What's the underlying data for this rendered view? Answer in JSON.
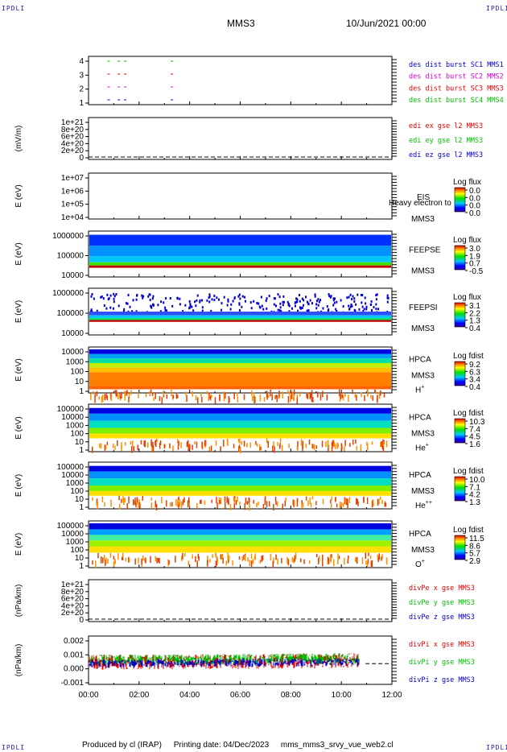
{
  "header": {
    "title": "MMS3",
    "date": "10/Jun/2021 00:00"
  },
  "corner_label": "IPDLI",
  "footer": {
    "producer": "Produced by cl (IRAP)",
    "printing": "Printing date: 04/Dec/2023",
    "file": "mms_mms3_srvy_vue_web2.cl"
  },
  "colors": {
    "red": "#e00000",
    "green": "#00c000",
    "blue": "#0000cc",
    "magenta": "#d000d0"
  },
  "chart_data": [
    {
      "type": "scatter",
      "id": "burst",
      "ylim": [
        0.5,
        4.5
      ],
      "yticks": [
        "1",
        "2",
        "3",
        "4"
      ],
      "legend": [
        {
          "text": "des dist burst SC1 MMS1",
          "color": "#0000cc"
        },
        {
          "text": "des dist burst SC2 MMS2",
          "color": "#d000d0"
        },
        {
          "text": "des dist burst SC3 MMS3",
          "color": "#e00000"
        },
        {
          "text": "des dist burst SC4 MMS4",
          "color": "#00c000"
        }
      ],
      "x_hours": [
        0.75,
        1.15,
        1.4,
        3.25
      ],
      "rows": [
        1,
        2,
        3,
        4
      ]
    },
    {
      "type": "line",
      "id": "edi",
      "ylabel": "(mV/m)",
      "yticks": [
        "0",
        "2e+20",
        "4e+20",
        "6e+20",
        "8e+20",
        "1e+21"
      ],
      "legend": [
        {
          "text": "edi ex gse l2 MMS3",
          "color": "#e00000"
        },
        {
          "text": "edi ey gse l2 MMS3",
          "color": "#00c000"
        },
        {
          "text": "edi ez gse l2 MMS3",
          "color": "#0000cc"
        }
      ]
    },
    {
      "type": "heatmap",
      "id": "eis",
      "ylabel": "E (eV)",
      "yticks": [
        "1e+04",
        "1e+05",
        "1e+06",
        "1e+07"
      ],
      "instrument": [
        "EIS",
        "MMS3"
      ],
      "overlay": "Heavy electron to",
      "cbar_title": "Log flux",
      "cbar_ticks": [
        "0.0",
        "0.0",
        "0.0",
        "0.0"
      ]
    },
    {
      "type": "heatmap",
      "id": "feepse",
      "ylabel": "E (eV)",
      "yticks": [
        "10000",
        "100000",
        "1000000"
      ],
      "instrument": [
        "FEEPSE",
        "MMS3"
      ],
      "cbar_title": "Log flux",
      "cbar_ticks": [
        "3.0",
        "1.9",
        "0.7",
        "-0.5"
      ]
    },
    {
      "type": "heatmap",
      "id": "feepsi",
      "ylabel": "E (eV)",
      "yticks": [
        "10000",
        "100000",
        "1000000"
      ],
      "instrument": [
        "FEEPSI",
        "MMS3"
      ],
      "cbar_title": "Log flux",
      "cbar_ticks": [
        "3.1",
        "2.2",
        "1.3",
        "0.4"
      ]
    },
    {
      "type": "heatmap",
      "id": "hpca-h",
      "ylabel": "E (eV)",
      "yticks": [
        "1",
        "10",
        "100",
        "1000",
        "10000"
      ],
      "instrument": [
        "HPCA",
        "MMS3"
      ],
      "species": "H",
      "species_sup": "+",
      "cbar_title": "Log fdist",
      "cbar_ticks": [
        "9.2",
        "6.3",
        "3.4",
        "0.4"
      ]
    },
    {
      "type": "heatmap",
      "id": "hpca-he",
      "ylabel": "E (eV)",
      "yticks": [
        "1",
        "10",
        "100",
        "1000",
        "10000",
        "100000"
      ],
      "instrument": [
        "HPCA",
        "MMS3"
      ],
      "species": "He",
      "species_sup": "+",
      "cbar_title": "Log fdist",
      "cbar_ticks": [
        "10.3",
        "7.4",
        "4.5",
        "1.6"
      ]
    },
    {
      "type": "heatmap",
      "id": "hpca-hepp",
      "ylabel": "E (eV)",
      "yticks": [
        "1",
        "10",
        "100",
        "1000",
        "10000",
        "100000"
      ],
      "instrument": [
        "HPCA",
        "MMS3"
      ],
      "species": "He",
      "species_sup": "++",
      "cbar_title": "Log fdist",
      "cbar_ticks": [
        "10.0",
        "7.1",
        "4.2",
        "1.3"
      ]
    },
    {
      "type": "heatmap",
      "id": "hpca-o",
      "ylabel": "E (eV)",
      "yticks": [
        "1",
        "10",
        "100",
        "1000",
        "10000",
        "100000"
      ],
      "instrument": [
        "HPCA",
        "MMS3"
      ],
      "species": "O",
      "species_sup": "+",
      "cbar_title": "Log fdist",
      "cbar_ticks": [
        "11.5",
        "8.6",
        "5.7",
        "2.9"
      ]
    },
    {
      "type": "line",
      "id": "divpe",
      "ylabel": "(nPa/km)",
      "yticks": [
        "0",
        "2e+20",
        "4e+20",
        "6e+20",
        "8e+20",
        "1e+21"
      ],
      "legend": [
        {
          "text": "divPe x gse MMS3",
          "color": "#e00000"
        },
        {
          "text": "divPe y gse MMS3",
          "color": "#00c000"
        },
        {
          "text": "divPe z gse MMS3",
          "color": "#0000cc"
        }
      ]
    },
    {
      "type": "line",
      "id": "divpi",
      "ylabel": "(nPa/km)",
      "yticks": [
        "-0.001",
        "0.000",
        "0.001",
        "0.002"
      ],
      "ylim": [
        -0.0015,
        0.002
      ],
      "legend": [
        {
          "text": "divPi x gse MMS3",
          "color": "#e00000"
        },
        {
          "text": "divPi y gse MMS3",
          "color": "#00c000"
        },
        {
          "text": "divPi z gse MMS3",
          "color": "#0000cc"
        }
      ],
      "data_end_hour": 10.7
    }
  ],
  "xaxis": {
    "ticks": [
      "00:00",
      "02:00",
      "04:00",
      "06:00",
      "08:00",
      "10:00",
      "12:00"
    ],
    "range_hours": [
      0,
      12
    ]
  }
}
